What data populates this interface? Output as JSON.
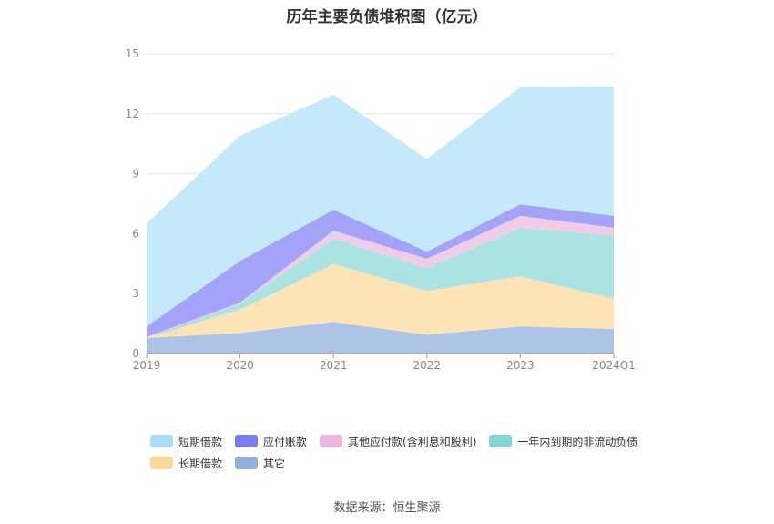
{
  "title": "历年主要负债堆积图（亿元）",
  "source": "数据来源：恒生聚源",
  "chart_data": {
    "type": "area",
    "stacked": true,
    "categories": [
      "2019",
      "2020",
      "2021",
      "2022",
      "2023",
      "2024Q1"
    ],
    "ylim": [
      0,
      15
    ],
    "yticks": [
      0,
      3,
      6,
      9,
      12,
      15
    ],
    "grid": true,
    "legend_position": "bottom",
    "series": [
      {
        "name": "其它",
        "color": "#aec4e6",
        "legend_color": "#91afdc",
        "values": [
          0.78,
          1.03,
          1.58,
          0.94,
          1.36,
          1.23
        ]
      },
      {
        "name": "长期借款",
        "color": "#fde4b6",
        "legend_color": "#fdd99c",
        "values": [
          0.0,
          1.17,
          2.9,
          2.19,
          2.5,
          1.52
        ]
      },
      {
        "name": "一年内到期的非流动负债",
        "color": "#abe3e2",
        "legend_color": "#86d5d5",
        "values": [
          0.0,
          0.3,
          1.27,
          1.14,
          2.43,
          3.15
        ]
      },
      {
        "name": "其他应付款(含利息和股利)",
        "color": "#f0cde6",
        "legend_color": "#ebb9dd",
        "values": [
          0.05,
          0.05,
          0.4,
          0.47,
          0.6,
          0.4
        ]
      },
      {
        "name": "应付账款",
        "color": "#a3a3f8",
        "legend_color": "#7c7cf2",
        "values": [
          0.53,
          2.08,
          1.05,
          0.36,
          0.58,
          0.6
        ]
      },
      {
        "name": "短期借款",
        "color": "#c4e9fb",
        "legend_color": "#a8def8",
        "values": [
          5.14,
          6.27,
          5.75,
          4.63,
          5.86,
          6.46
        ]
      }
    ],
    "legend_rows": [
      [
        "短期借款",
        "应付账款",
        "其他应付款(含利息和股利)",
        "一年内到期的非流动负债"
      ],
      [
        "长期借款",
        "其它"
      ]
    ]
  }
}
